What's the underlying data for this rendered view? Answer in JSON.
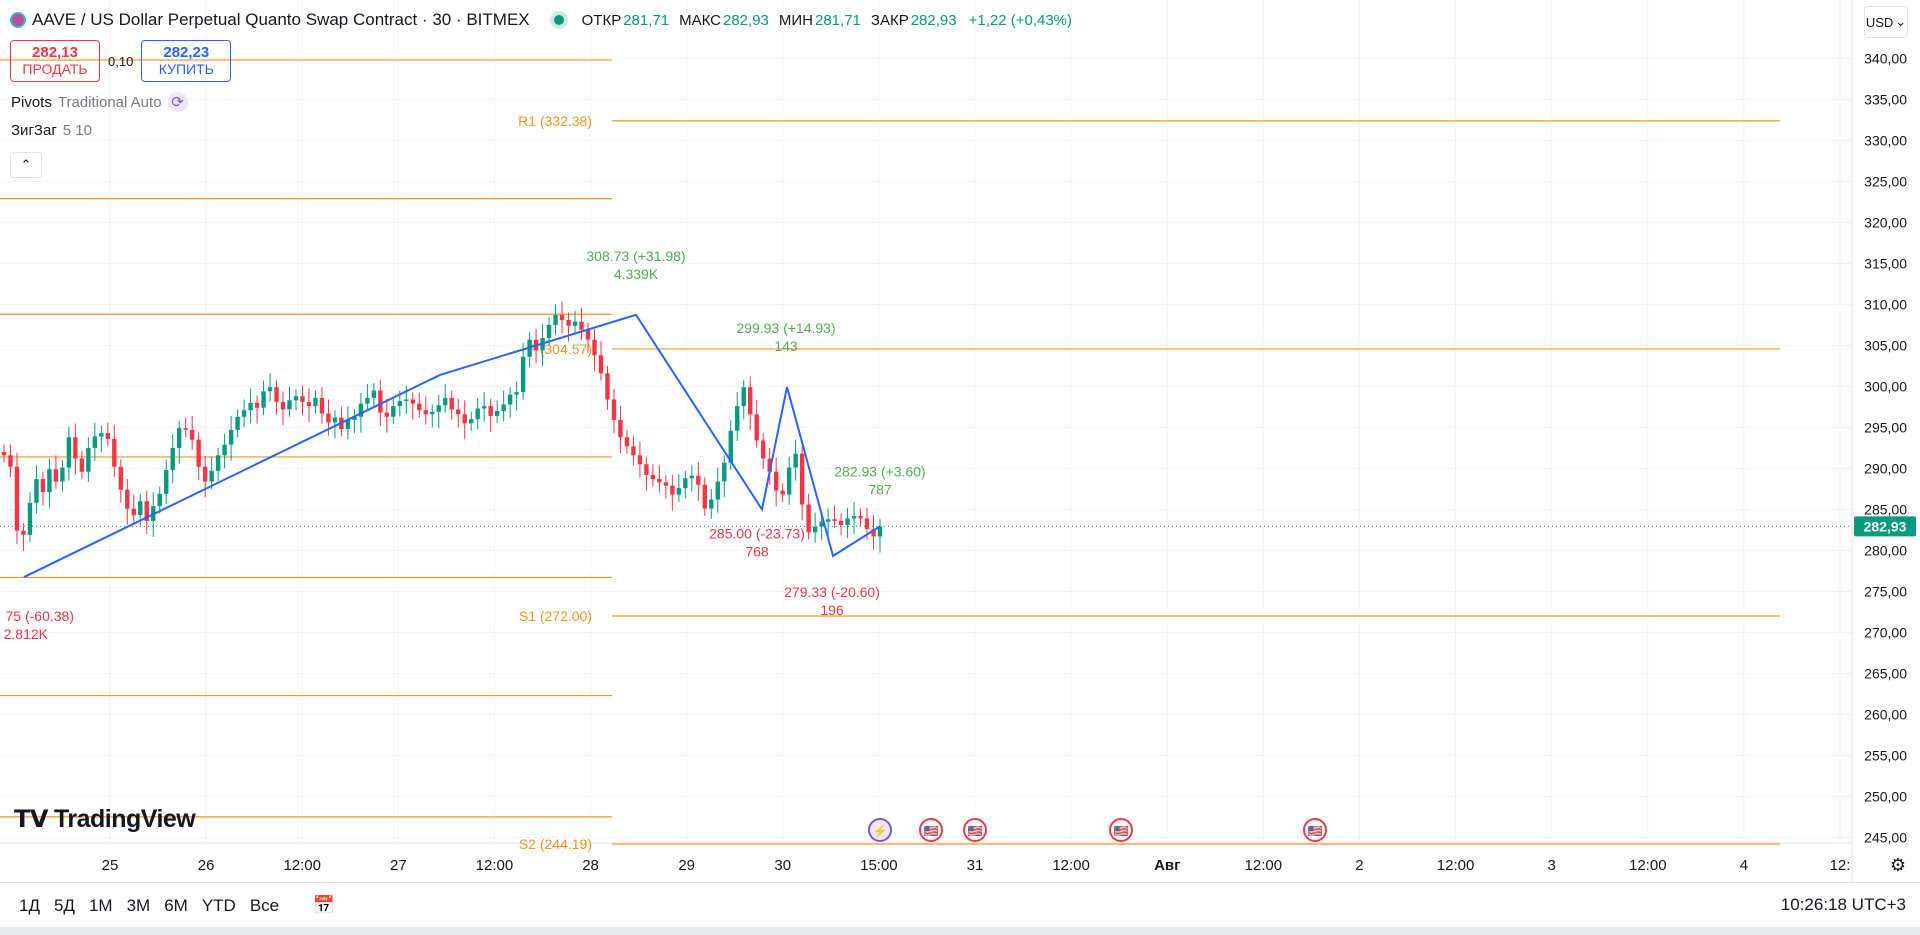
{
  "header": {
    "symbol_title": "AAVE / US Dollar Perpetual Quanto Swap Contract · 30 · BITMEX",
    "ohlc": [
      {
        "key": "ОТКР",
        "value": "281,71"
      },
      {
        "key": "МАКС",
        "value": "282,93"
      },
      {
        "key": "МИН",
        "value": "281,71"
      },
      {
        "key": "ЗАКР",
        "value": "282,93"
      }
    ],
    "change": "+1,22 (+0,43%)",
    "currency": "USD"
  },
  "trade": {
    "sell_price": "282,13",
    "sell_label": "ПРОДАТЬ",
    "spread": "0,10",
    "buy_price": "282,23",
    "buy_label": "КУПИТЬ"
  },
  "indicators": [
    {
      "name": "Pivots",
      "params": "Traditional Auto"
    },
    {
      "name": "ЗигЗаг",
      "params": "5 10"
    }
  ],
  "branding": {
    "logo_text": "TradingView"
  },
  "bottom_bar": {
    "periods": [
      "1Д",
      "5Д",
      "1М",
      "3М",
      "6М",
      "YTD",
      "Все"
    ],
    "clock": "10:26:18 UTC+3"
  },
  "colors": {
    "up": "#089981",
    "down": "#f23645",
    "zigzag": "#2962ff",
    "pivot": "#f7931a",
    "label_up": "#4caf50",
    "label_down": "#f23645"
  },
  "chart_data": {
    "type": "candlestick",
    "ylim": [
      242,
      342
    ],
    "y_ticks": [
      "245,00",
      "250,00",
      "255,00",
      "260,00",
      "265,00",
      "270,00",
      "275,00",
      "280,00",
      "285,00",
      "290,00",
      "295,00",
      "300,00",
      "305,00",
      "310,00",
      "315,00",
      "320,00",
      "325,00",
      "330,00",
      "335,00",
      "340,00"
    ],
    "x_ticks": [
      "25",
      "26",
      "12:00",
      "27",
      "12:00",
      "28",
      "29",
      "30",
      "15:00",
      "31",
      "12:00",
      "Авг",
      "12:00",
      "2",
      "12:00",
      "3",
      "12:00",
      "4",
      "12:"
    ],
    "last_price": "282,93",
    "pivot_levels": [
      {
        "label": "R1 (332.38)",
        "value": 332.38
      },
      {
        "label": "P (304.57)",
        "value": 304.57
      },
      {
        "label": "S1 (272.00)",
        "value": 272.0
      },
      {
        "label": "S2 (244.19)",
        "value": 244.19
      }
    ],
    "previous_pivot_levels": [
      339.8,
      322.9,
      308.8,
      291.4,
      276.7,
      262.3,
      247.5
    ],
    "zigzag_points": [
      276.75,
      301.4,
      308.73,
      285.0,
      299.93,
      279.33,
      282.93
    ],
    "zigzag_labels": [
      {
        "text": "308.73 (+31.98)",
        "volume": "4.339K",
        "dir": "up"
      },
      {
        "text": "299.93 (+14.93)",
        "volume": "143",
        "dir": "up"
      },
      {
        "text": "282.93 (+3.60)",
        "volume": "787",
        "dir": "up"
      },
      {
        "text": "285.00 (-23.73)",
        "volume": "768",
        "dir": "down"
      },
      {
        "text": "279.33 (-20.60)",
        "volume": "196",
        "dir": "down"
      },
      {
        "text": "75 (-60.38)",
        "volume": "2.812K",
        "dir": "down"
      }
    ],
    "candles_close": [
      291.6,
      290.2,
      282.4,
      281.9,
      285.8,
      288.7,
      287.1,
      289.9,
      288.4,
      290.1,
      293.8,
      291.2,
      289.6,
      292.5,
      293.9,
      294.3,
      293.6,
      290.2,
      287.4,
      285.1,
      284.3,
      286.0,
      283.6,
      285.4,
      286.9,
      289.8,
      292.5,
      294.9,
      294.7,
      293.5,
      290.2,
      288.4,
      289.7,
      291.6,
      292.9,
      294.7,
      296.3,
      297.1,
      298.0,
      297.4,
      299.4,
      299.9,
      298.1,
      297.2,
      298.3,
      298.8,
      298.1,
      297.6,
      298.6,
      296.7,
      295.6,
      296.2,
      294.8,
      295.9,
      296.3,
      297.9,
      298.6,
      299.5,
      296.8,
      296.3,
      297.6,
      298.2,
      298.4,
      297.9,
      297.1,
      296.6,
      296.9,
      297.7,
      298.6,
      297.2,
      296.6,
      295.5,
      296.0,
      297.3,
      297.6,
      296.4,
      297.0,
      297.8,
      299.0,
      299.3,
      303.6,
      305.7,
      304.4,
      305.9,
      307.5,
      308.7,
      308.1,
      307.4,
      307.9,
      306.9,
      305.7,
      303.8,
      301.6,
      298.4,
      295.9,
      293.8,
      292.7,
      291.6,
      290.5,
      289.2,
      288.7,
      288.3,
      287.9,
      286.8,
      287.6,
      288.8,
      289.1,
      288.0,
      285.1,
      286.2,
      288.4,
      290.7,
      294.6,
      297.6,
      299.9,
      296.6,
      293.4,
      291.2,
      289.6,
      287.3,
      286.8,
      290.1,
      291.8,
      285.6,
      282.2,
      282.9,
      283.5,
      283.8,
      283.6,
      283.1,
      283.9,
      284.2,
      283.9,
      282.6,
      281.7,
      282.9
    ],
    "events": [
      "⚡",
      "🇺🇸",
      "🇺🇸",
      "🇺🇸",
      "🇺🇸"
    ]
  }
}
